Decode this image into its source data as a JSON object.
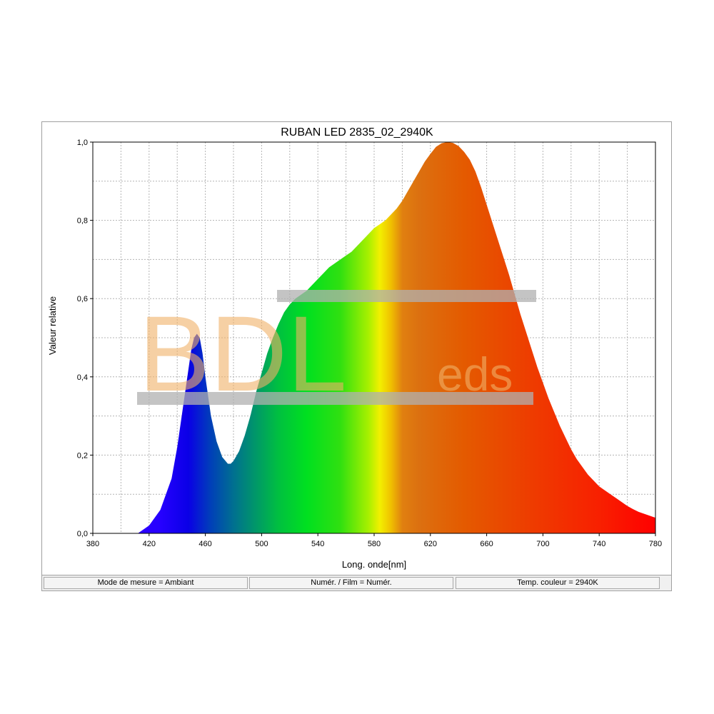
{
  "chart_data": {
    "type": "area",
    "title": "RUBAN LED 2835_02_2940K",
    "xlabel": "Long. onde[nm]",
    "ylabel": "Valeur relative",
    "xlim": [
      380,
      780
    ],
    "ylim": [
      0,
      1.0
    ],
    "grid": true,
    "x_ticks": [
      380,
      420,
      460,
      500,
      540,
      580,
      620,
      660,
      700,
      740,
      780
    ],
    "x_tick_labels": [
      "380",
      "420",
      "460",
      "500",
      "540",
      "580",
      "620",
      "660",
      "700",
      "740",
      "780"
    ],
    "y_ticks": [
      0,
      0.2,
      0.4,
      0.6,
      0.8,
      1.0
    ],
    "y_tick_labels": [
      "0,0",
      "0,2",
      "0,4",
      "0,6",
      "0,8",
      "1,0"
    ],
    "series": [
      {
        "x": [
          380,
          412,
          420,
          428,
          436,
          440,
          444,
          448,
          450,
          452,
          454,
          456,
          458,
          460,
          464,
          468,
          472,
          476,
          478,
          480,
          484,
          488,
          492,
          496,
          500,
          504,
          508,
          512,
          516,
          520,
          524,
          528,
          532,
          536,
          540,
          544,
          548,
          552,
          556,
          560,
          564,
          568,
          572,
          576,
          580,
          584,
          588,
          592,
          596,
          600,
          604,
          608,
          612,
          616,
          620,
          624,
          628,
          632,
          636,
          640,
          644,
          648,
          652,
          656,
          660,
          664,
          668,
          672,
          676,
          680,
          684,
          688,
          692,
          696,
          700,
          704,
          708,
          712,
          716,
          720,
          724,
          728,
          732,
          736,
          740,
          744,
          748,
          752,
          756,
          760,
          764,
          768,
          772,
          776,
          780
        ],
        "y": [
          0.0,
          0.0,
          0.02,
          0.06,
          0.14,
          0.22,
          0.32,
          0.42,
          0.47,
          0.5,
          0.51,
          0.5,
          0.46,
          0.4,
          0.3,
          0.235,
          0.195,
          0.178,
          0.178,
          0.185,
          0.21,
          0.25,
          0.3,
          0.36,
          0.41,
          0.46,
          0.5,
          0.535,
          0.565,
          0.585,
          0.6,
          0.61,
          0.62,
          0.635,
          0.65,
          0.665,
          0.68,
          0.69,
          0.7,
          0.71,
          0.72,
          0.735,
          0.75,
          0.765,
          0.78,
          0.79,
          0.8,
          0.815,
          0.83,
          0.85,
          0.875,
          0.9,
          0.925,
          0.95,
          0.97,
          0.988,
          0.997,
          1.0,
          0.998,
          0.99,
          0.975,
          0.955,
          0.925,
          0.885,
          0.84,
          0.795,
          0.75,
          0.705,
          0.66,
          0.61,
          0.56,
          0.515,
          0.47,
          0.425,
          0.385,
          0.345,
          0.31,
          0.275,
          0.245,
          0.215,
          0.19,
          0.17,
          0.15,
          0.135,
          0.12,
          0.11,
          0.1,
          0.09,
          0.08,
          0.07,
          0.062,
          0.055,
          0.05,
          0.045,
          0.04
        ]
      }
    ],
    "colors": {
      "plot_border": "#000000",
      "grid": "#b4b4b4",
      "frame_border": "#a0a0a0"
    }
  },
  "watermark": {
    "text_main": "BDL",
    "text_sub": "eds",
    "color": "#f0b068",
    "bar_color": "#b0b0b0"
  },
  "status_bar": {
    "measure_mode": "Mode de mesure = Ambiant",
    "numer_film": "Numér. / Film = Numér.",
    "color_temp": "Temp. couleur = 2940K"
  }
}
